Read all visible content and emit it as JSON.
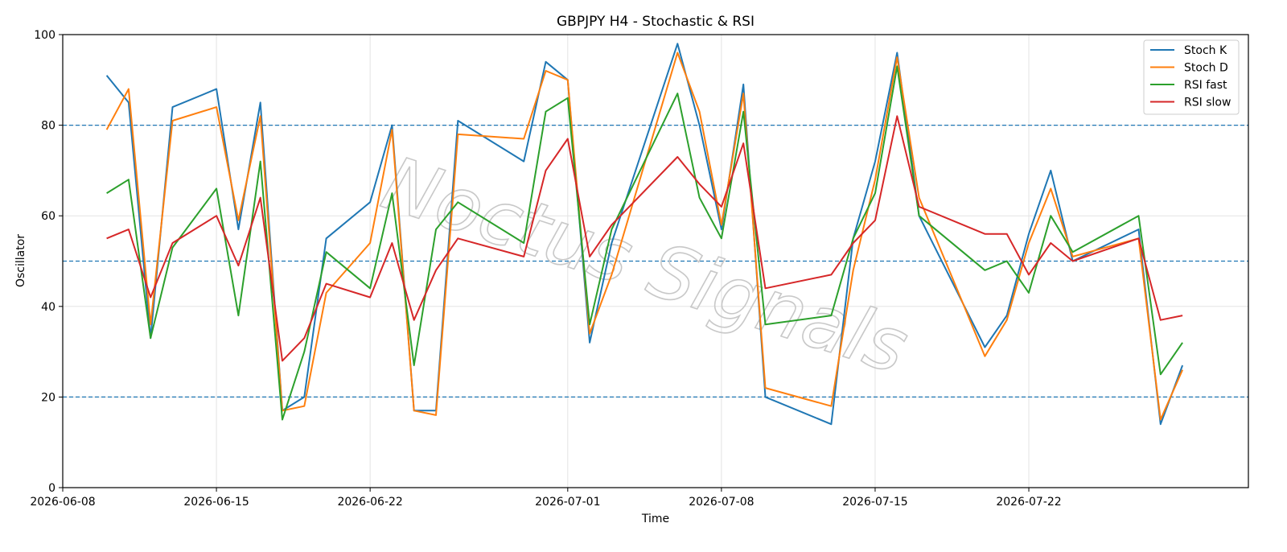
{
  "chart_data": {
    "type": "line",
    "title": "GBPJPY H4 - Stochastic & RSI",
    "xlabel": "Time",
    "ylabel": "Oscillator",
    "ylim": [
      0,
      100
    ],
    "xlim": [
      "2026-06-08",
      "2026-08-01"
    ],
    "x_ticks": [
      "2026-06-08",
      "2026-06-15",
      "2026-06-22",
      "2026-07-01",
      "2026-07-08",
      "2026-07-15",
      "2026-07-22"
    ],
    "y_ticks": [
      0,
      20,
      40,
      60,
      80,
      100
    ],
    "grid": true,
    "legend_position": "top-right",
    "reference_lines": [
      {
        "y": 80,
        "style": "dashed",
        "color": "#1f77b4"
      },
      {
        "y": 50,
        "style": "dashed",
        "color": "#1f77b4"
      },
      {
        "y": 20,
        "style": "dashed",
        "color": "#1f77b4"
      }
    ],
    "watermark": "Noctus Signals",
    "x": [
      "2026-06-10",
      "2026-06-11",
      "2026-06-12",
      "2026-06-13",
      "2026-06-15",
      "2026-06-16",
      "2026-06-17",
      "2026-06-18",
      "2026-06-19",
      "2026-06-20",
      "2026-06-22",
      "2026-06-23",
      "2026-06-24",
      "2026-06-25",
      "2026-06-26",
      "2026-06-29",
      "2026-06-30",
      "2026-07-01",
      "2026-07-02",
      "2026-07-03",
      "2026-07-06",
      "2026-07-07",
      "2026-07-08",
      "2026-07-09",
      "2026-07-10",
      "2026-07-13",
      "2026-07-14",
      "2026-07-15",
      "2026-07-16",
      "2026-07-17",
      "2026-07-20",
      "2026-07-21",
      "2026-07-22",
      "2026-07-23",
      "2026-07-24",
      "2026-07-27",
      "2026-07-28",
      "2026-07-29"
    ],
    "series": [
      {
        "name": "Stoch K",
        "color": "#1f77b4",
        "values": [
          91,
          85,
          33,
          84,
          88,
          57,
          85,
          17,
          20,
          55,
          63,
          80,
          17,
          17,
          81,
          72,
          94,
          90,
          32,
          54,
          98,
          80,
          57,
          89,
          20,
          14,
          55,
          72,
          96,
          60,
          31,
          38,
          56,
          70,
          50,
          57,
          14,
          27
        ]
      },
      {
        "name": "Stoch D",
        "color": "#ff7f0e",
        "values": [
          79,
          88,
          36,
          81,
          84,
          59,
          82,
          17,
          18,
          43,
          54,
          79,
          17,
          16,
          78,
          77,
          92,
          90,
          34,
          47,
          96,
          83,
          58,
          87,
          22,
          18,
          48,
          68,
          95,
          64,
          29,
          37,
          54,
          66,
          51,
          55,
          15,
          26
        ]
      },
      {
        "name": "RSI fast",
        "color": "#2ca02c",
        "values": [
          65,
          68,
          33,
          53,
          66,
          38,
          72,
          15,
          30,
          52,
          44,
          65,
          27,
          57,
          63,
          54,
          83,
          86,
          36,
          57,
          87,
          64,
          55,
          83,
          36,
          38,
          55,
          65,
          93,
          60,
          48,
          50,
          43,
          60,
          52,
          60,
          25,
          32
        ]
      },
      {
        "name": "RSI slow",
        "color": "#d62728",
        "values": [
          55,
          57,
          42,
          54,
          60,
          49,
          64,
          28,
          33,
          45,
          42,
          54,
          37,
          48,
          55,
          51,
          70,
          77,
          51,
          58,
          73,
          67,
          62,
          76,
          44,
          47,
          54,
          59,
          82,
          62,
          56,
          56,
          47,
          54,
          50,
          55,
          37,
          38
        ]
      }
    ]
  }
}
